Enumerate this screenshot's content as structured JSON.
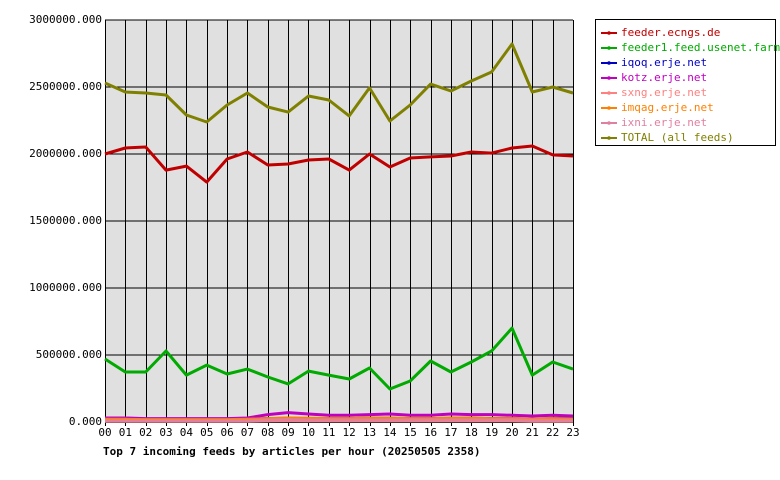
{
  "chart_data": {
    "type": "line",
    "title": "Top 7 incoming feeds by articles per hour (20250505 2358)",
    "categories": [
      "00",
      "01",
      "02",
      "03",
      "04",
      "05",
      "06",
      "07",
      "08",
      "09",
      "10",
      "11",
      "12",
      "13",
      "14",
      "15",
      "16",
      "17",
      "18",
      "19",
      "20",
      "21",
      "22",
      "23"
    ],
    "ylim": [
      0,
      3000000
    ],
    "yticks": [
      {
        "value": 0,
        "label": "0.000"
      },
      {
        "value": 500000,
        "label": "500000.000"
      },
      {
        "value": 1000000,
        "label": "1000000.000"
      },
      {
        "value": 1500000,
        "label": "1500000.000"
      },
      {
        "value": 2000000,
        "label": "2000000.000"
      },
      {
        "value": 2500000,
        "label": "2500000.000"
      },
      {
        "value": 3000000,
        "label": "3000000.000"
      }
    ],
    "grid": true,
    "legend": "right",
    "series": [
      {
        "name": "feeder.ecngs.de",
        "color": "#c00000",
        "values": [
          2000000,
          2045000,
          2052000,
          1880000,
          1910000,
          1790000,
          1963000,
          2015000,
          1918000,
          1925000,
          1955000,
          1963000,
          1880000,
          2000000,
          1903000,
          1970000,
          1978000,
          1985000,
          2015000,
          2007000,
          2045000,
          2060000,
          1993000,
          1985000
        ]
      },
      {
        "name": "feeder1.feed.usenet.farm",
        "color": "#00aa00",
        "values": [
          470000,
          373000,
          373000,
          530000,
          350000,
          425000,
          358000,
          395000,
          336000,
          284000,
          380000,
          350000,
          321000,
          403000,
          246000,
          306000,
          455000,
          373000,
          448000,
          530000,
          701000,
          350000,
          448000,
          395000
        ]
      },
      {
        "name": "iqoq.erje.net",
        "color": "#0000c0",
        "values": [
          25000,
          25000,
          22000,
          22000,
          22000,
          22000,
          22000,
          22000,
          25000,
          28000,
          25000,
          25000,
          25000,
          28000,
          28000,
          25000,
          25000,
          28000,
          28000,
          25000,
          25000,
          22000,
          25000,
          25000
        ]
      },
      {
        "name": "kotz.erje.net",
        "color": "#c000c0",
        "values": [
          30000,
          30000,
          25000,
          25000,
          25000,
          25000,
          25000,
          30000,
          55000,
          70000,
          60000,
          50000,
          50000,
          55000,
          60000,
          50000,
          50000,
          60000,
          55000,
          55000,
          50000,
          45000,
          50000,
          45000
        ]
      },
      {
        "name": "sxng.erje.net",
        "color": "#ff8080",
        "values": [
          5000,
          5000,
          5000,
          5000,
          5000,
          5000,
          5000,
          5000,
          8000,
          10000,
          8000,
          8000,
          8000,
          8000,
          8000,
          8000,
          8000,
          8000,
          8000,
          8000,
          8000,
          5000,
          5000,
          5000
        ]
      },
      {
        "name": "imqag.erje.net",
        "color": "#ff8000",
        "values": [
          20000,
          20000,
          18000,
          18000,
          18000,
          18000,
          18000,
          20000,
          25000,
          30000,
          28000,
          25000,
          25000,
          28000,
          28000,
          25000,
          25000,
          28000,
          28000,
          25000,
          25000,
          22000,
          25000,
          22000
        ]
      },
      {
        "name": "ixni.erje.net",
        "color": "#e080a0",
        "values": [
          10000,
          10000,
          10000,
          10000,
          10000,
          10000,
          10000,
          10000,
          15000,
          18000,
          15000,
          15000,
          15000,
          15000,
          15000,
          15000,
          15000,
          15000,
          15000,
          15000,
          15000,
          12000,
          12000,
          12000
        ]
      },
      {
        "name": "TOTAL (all feeds)",
        "color": "#808000",
        "values": [
          2530000,
          2463000,
          2455000,
          2440000,
          2291000,
          2239000,
          2366000,
          2455000,
          2351000,
          2313000,
          2433000,
          2403000,
          2284000,
          2493000,
          2246000,
          2366000,
          2522000,
          2470000,
          2545000,
          2612000,
          2821000,
          2463000,
          2500000,
          2455000
        ]
      }
    ]
  }
}
